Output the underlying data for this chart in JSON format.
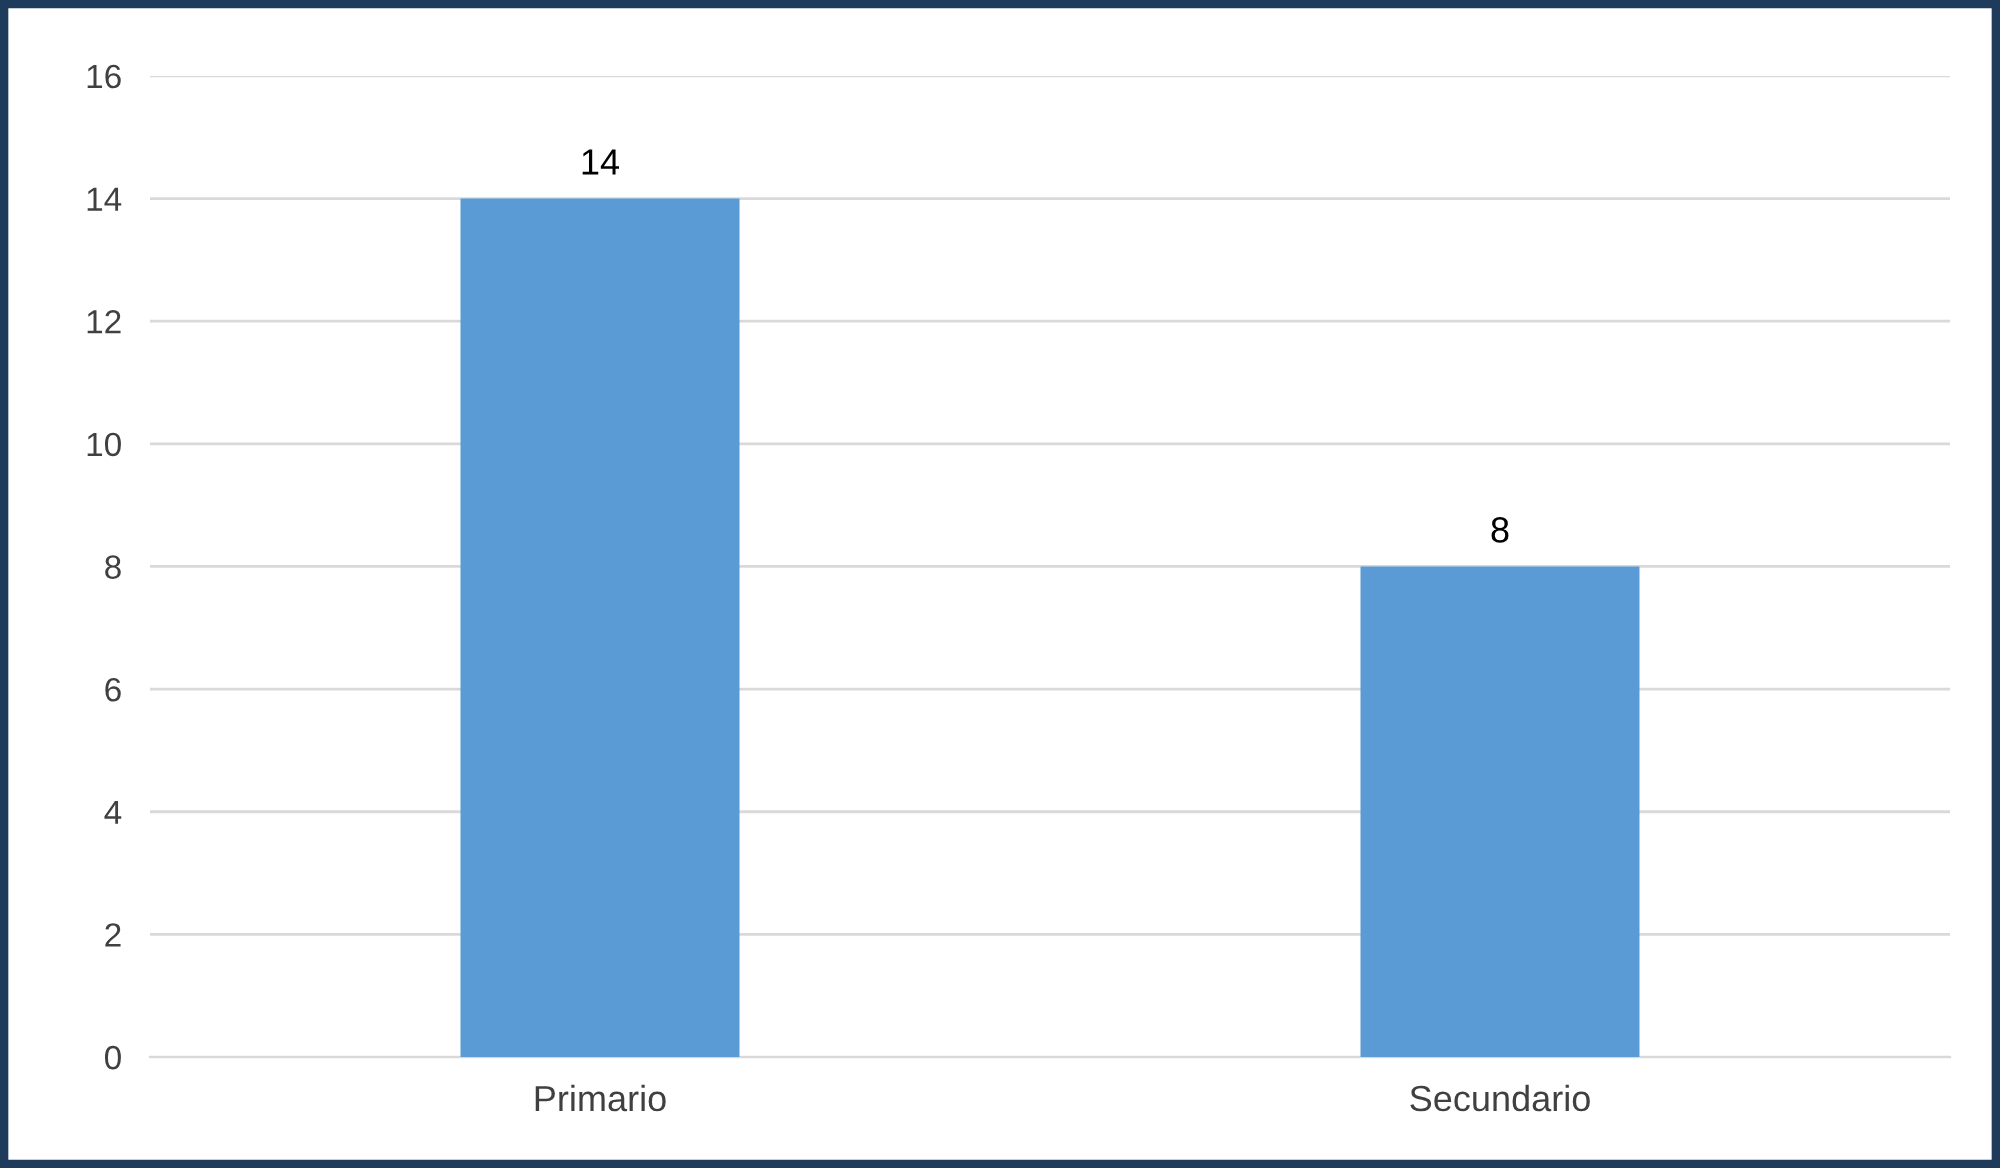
{
  "chart_data": {
    "type": "bar",
    "categories": [
      "Primario",
      "Secundario"
    ],
    "values": [
      14,
      8
    ],
    "color": "#5b9bd5",
    "ylim": [
      0,
      16
    ],
    "yticks": [
      0,
      2,
      4,
      6,
      8,
      10,
      12,
      14,
      16
    ],
    "grid": "y",
    "data_labels": true
  }
}
